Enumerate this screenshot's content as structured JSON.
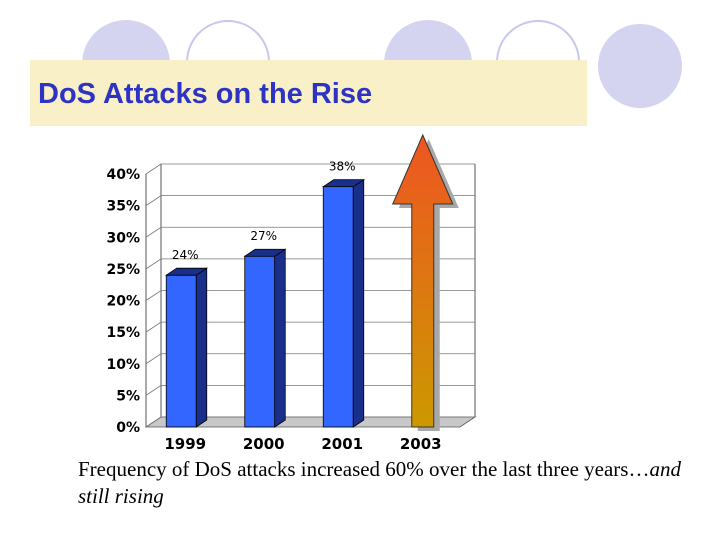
{
  "slide": {
    "title": "DoS Attacks on the Rise",
    "caption_main": "Frequency of DoS attacks increased 60% over the last three years…",
    "caption_italic": "and still rising"
  },
  "colors": {
    "bar_front": "#3366ff",
    "bar_side": "#1a2f8a",
    "bar_top": "#1a2f8a",
    "arrow_top": "#ee5522",
    "arrow_bottom": "#cc9900",
    "title_bar": "#faf0c8",
    "title_text": "#2d33c2",
    "deco_circle": "#d4d4f0"
  },
  "chart_data": {
    "type": "bar",
    "categories": [
      "1999",
      "2000",
      "2001",
      "2003"
    ],
    "values": [
      24,
      27,
      38,
      null
    ],
    "data_labels": [
      "24%",
      "27%",
      "38%",
      ""
    ],
    "ylim": [
      0,
      40
    ],
    "y_ticks": [
      "0%",
      "5%",
      "10%",
      "15%",
      "20%",
      "25%",
      "30%",
      "35%",
      "40%"
    ],
    "xlabel": "",
    "ylabel": "",
    "grid": true,
    "annotation": "upward arrow above 2003 (rising trend)"
  }
}
